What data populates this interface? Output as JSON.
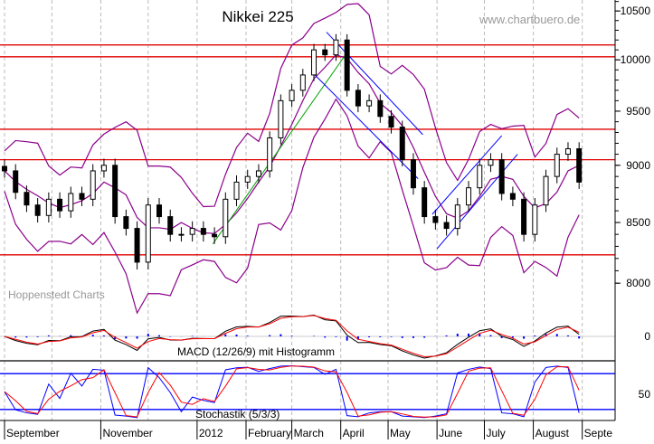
{
  "chart_data": {
    "type": "candlestick",
    "title": "Nikkei 225",
    "watermark": "www.chartbuero.de",
    "source_label": "Hoppenstedt Charts",
    "y_scale": "log",
    "ylim": [
      7900,
      10700
    ],
    "y_ticks": [
      "10500",
      "10000",
      "9500",
      "9000",
      "8500",
      "8000"
    ],
    "x_tick_labels": [
      "September",
      "November",
      "2012",
      "February",
      "March",
      "April",
      "May",
      "June",
      "July",
      "August",
      "Septe"
    ],
    "grid": "vertical dashed",
    "colors": {
      "candles": "#000000",
      "bollinger": "#8b008b",
      "support_lines": "#e00000",
      "trend_up": "#00a000",
      "trend_channel": "#0000ff",
      "macd": "#000000",
      "signal": "#ff0000",
      "histogram": "#0000ff",
      "stoch_k": "#0000ff",
      "stoch_d": "#ff0000"
    },
    "horizontal_lines": [
      10150,
      10030,
      9330,
      9050,
      8230
    ],
    "trend_lines": [
      {
        "color": "green",
        "from": [
          "2012-01-11",
          8320
        ],
        "to": [
          "2012-04-04",
          10050
        ]
      },
      {
        "color": "blue",
        "from": [
          "2012-03-23",
          10280
        ],
        "to": [
          "2012-05-23",
          9280
        ]
      },
      {
        "color": "blue",
        "from": [
          "2012-03-15",
          9860
        ],
        "to": [
          "2012-05-20",
          8880
        ]
      },
      {
        "color": "blue",
        "from": [
          "2012-05-29",
          8570
        ],
        "to": [
          "2012-07-12",
          9270
        ]
      },
      {
        "color": "blue",
        "from": [
          "2012-06-01",
          8280
        ],
        "to": [
          "2012-07-22",
          9100
        ]
      }
    ],
    "series": {
      "dates": [
        "2011-09-01",
        "2011-09-08",
        "2011-09-15",
        "2011-09-22",
        "2011-09-29",
        "2011-10-06",
        "2011-10-13",
        "2011-10-20",
        "2011-10-27",
        "2011-11-03",
        "2011-11-10",
        "2011-11-17",
        "2011-11-24",
        "2011-12-01",
        "2011-12-08",
        "2011-12-15",
        "2011-12-22",
        "2011-12-29",
        "2012-01-05",
        "2012-01-12",
        "2012-01-19",
        "2012-01-26",
        "2012-02-02",
        "2012-02-09",
        "2012-02-16",
        "2012-02-23",
        "2012-03-01",
        "2012-03-08",
        "2012-03-15",
        "2012-03-22",
        "2012-03-29",
        "2012-04-05",
        "2012-04-12",
        "2012-04-19",
        "2012-04-26",
        "2012-05-03",
        "2012-05-10",
        "2012-05-17",
        "2012-05-24",
        "2012-05-31",
        "2012-06-07",
        "2012-06-14",
        "2012-06-21",
        "2012-06-28",
        "2012-07-05",
        "2012-07-12",
        "2012-07-19",
        "2012-07-26",
        "2012-08-02",
        "2012-08-09",
        "2012-08-16",
        "2012-08-23",
        "2012-08-30"
      ],
      "close": [
        8950,
        8760,
        8650,
        8560,
        8700,
        8600,
        8750,
        8700,
        8950,
        9000,
        8550,
        8450,
        8170,
        8650,
        8550,
        8400,
        8400,
        8450,
        8400,
        8380,
        8700,
        8850,
        8900,
        8950,
        9250,
        9600,
        9700,
        9850,
        10100,
        10050,
        10200,
        9700,
        9550,
        9600,
        9450,
        9350,
        9050,
        8800,
        8550,
        8500,
        8450,
        8650,
        8800,
        9000,
        9050,
        8750,
        8700,
        8400,
        8650,
        8900,
        9100,
        9150,
        8850
      ]
    },
    "macd": {
      "label": "MACD (12/26/9) mit Histogramm",
      "params": [
        12,
        26,
        9
      ],
      "y_ticks": [
        "0"
      ]
    },
    "stochastic": {
      "label": "Stochastik (5/3/3)",
      "params": [
        5,
        3,
        3
      ],
      "levels": [
        80,
        20
      ],
      "y_ticks": [
        "50"
      ]
    }
  }
}
